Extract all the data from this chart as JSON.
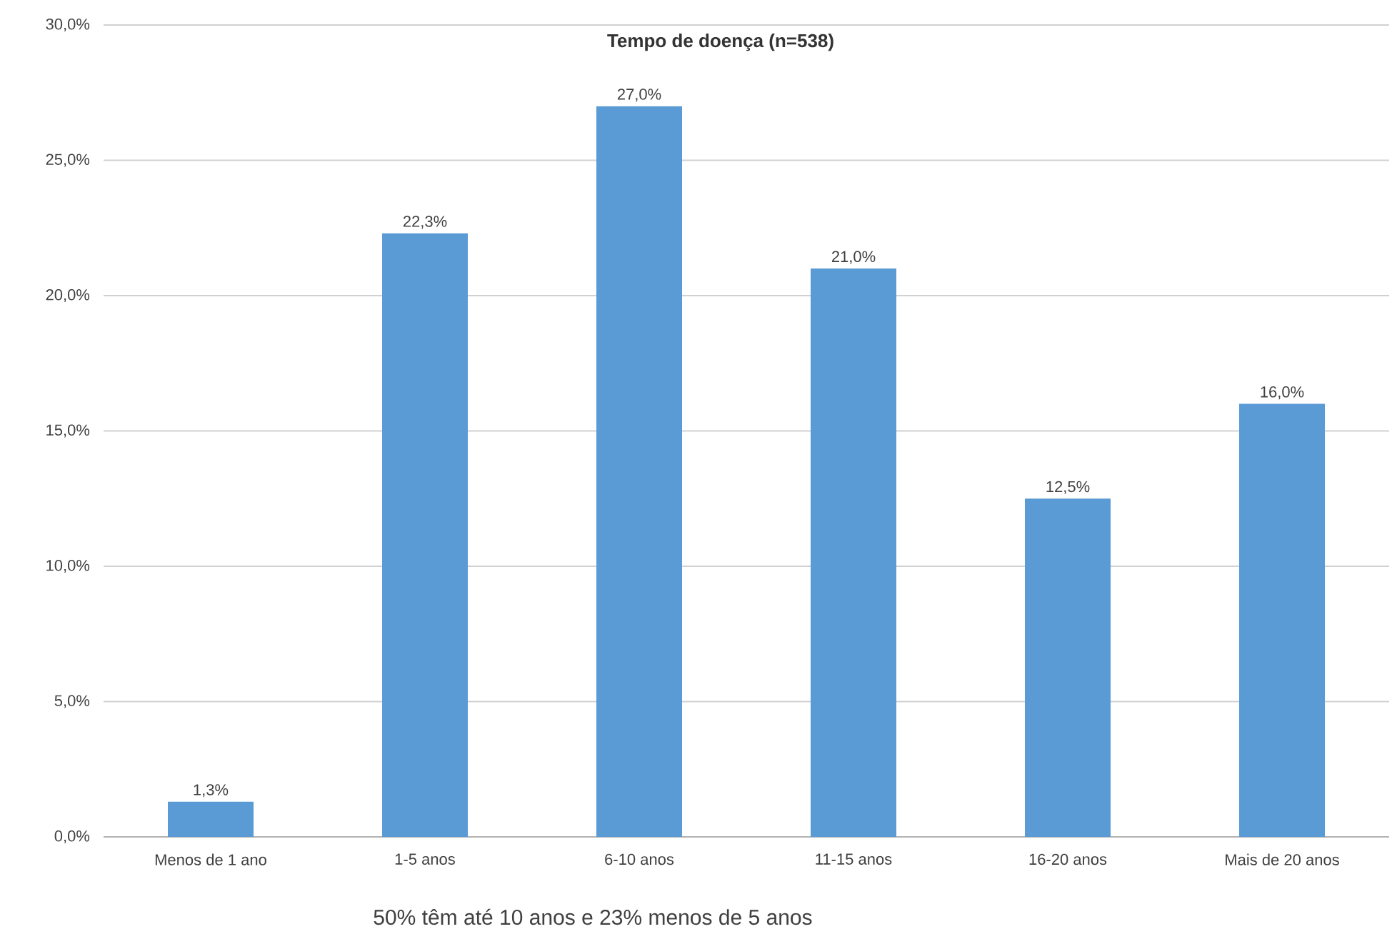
{
  "chart_data": {
    "type": "bar",
    "title": "Tempo de doença (n=538)",
    "categories": [
      "Menos de 1 ano",
      "1-5 anos",
      "6-10 anos",
      "11-15 anos",
      "16-20 anos",
      "Mais de 20 anos"
    ],
    "values": [
      1.3,
      22.3,
      27.0,
      21.0,
      12.5,
      16.0
    ],
    "value_labels": [
      "1,3%",
      "22,3%",
      "27,0%",
      "21,0%",
      "12,5%",
      "16,0%"
    ],
    "color": "#5b9bd5",
    "ylim": [
      0,
      30
    ],
    "yticks": [
      {
        "value": 0,
        "label": "0,0%"
      },
      {
        "value": 5,
        "label": "5,0%"
      },
      {
        "value": 10,
        "label": "10,0%"
      },
      {
        "value": 15,
        "label": "15,0%"
      },
      {
        "value": 20,
        "label": "20,0%"
      },
      {
        "value": 25,
        "label": "25,0%"
      },
      {
        "value": 30,
        "label": "30,0%"
      }
    ],
    "grid": "y",
    "annotations": [
      "50%  têm até 10 anos e 23% menos de 5 anos"
    ]
  }
}
